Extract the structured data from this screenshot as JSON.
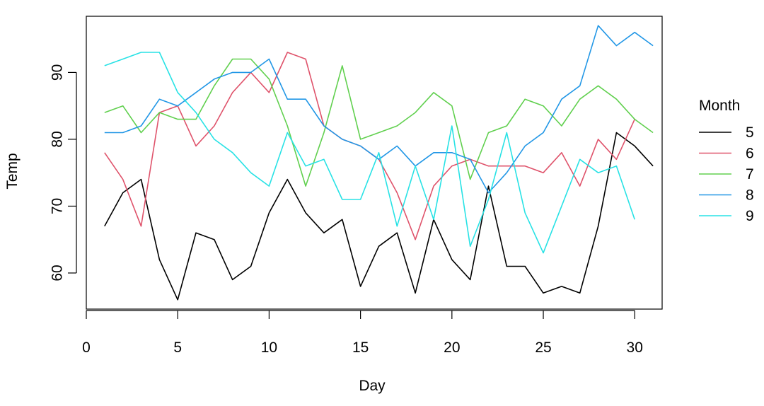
{
  "chart_data": {
    "type": "line",
    "xlabel": "Day",
    "ylabel": "Temp",
    "xlim": [
      0,
      31.5
    ],
    "ylim": [
      54.6,
      98.4
    ],
    "xticks": [
      0,
      5,
      10,
      15,
      20,
      25,
      30
    ],
    "yticks": [
      60,
      70,
      80,
      90
    ],
    "grid": false,
    "legend": {
      "title": "Month",
      "position": "right"
    },
    "series": [
      {
        "name": "5",
        "color": "#000000",
        "x": [
          1,
          2,
          3,
          4,
          5,
          6,
          7,
          8,
          9,
          10,
          11,
          12,
          13,
          14,
          15,
          16,
          17,
          18,
          19,
          20,
          21,
          22,
          23,
          24,
          25,
          26,
          27,
          28,
          29,
          30,
          31
        ],
        "values": [
          67,
          72,
          74,
          62,
          56,
          66,
          65,
          59,
          61,
          69,
          74,
          69,
          66,
          68,
          58,
          64,
          66,
          57,
          68,
          62,
          59,
          73,
          61,
          61,
          57,
          58,
          57,
          67,
          81,
          79,
          76
        ]
      },
      {
        "name": "6",
        "color": "#DF536B",
        "x": [
          1,
          2,
          3,
          4,
          5,
          6,
          7,
          8,
          9,
          10,
          11,
          12,
          13,
          14,
          15,
          16,
          17,
          18,
          19,
          20,
          21,
          22,
          23,
          24,
          25,
          26,
          27,
          28,
          29,
          30
        ],
        "values": [
          78,
          74,
          67,
          84,
          85,
          79,
          82,
          87,
          90,
          87,
          93,
          92,
          82,
          80,
          79,
          77,
          72,
          65,
          73,
          76,
          77,
          76,
          76,
          76,
          75,
          78,
          73,
          80,
          77,
          83
        ]
      },
      {
        "name": "7",
        "color": "#61D04F",
        "x": [
          1,
          2,
          3,
          4,
          5,
          6,
          7,
          8,
          9,
          10,
          11,
          12,
          13,
          14,
          15,
          16,
          17,
          18,
          19,
          20,
          21,
          22,
          23,
          24,
          25,
          26,
          27,
          28,
          29,
          30,
          31
        ],
        "values": [
          84,
          85,
          81,
          84,
          83,
          83,
          88,
          92,
          92,
          89,
          82,
          73,
          81,
          91,
          80,
          81,
          82,
          84,
          87,
          85,
          74,
          81,
          82,
          86,
          85,
          82,
          86,
          88,
          86,
          83,
          81
        ]
      },
      {
        "name": "8",
        "color": "#2297E6",
        "x": [
          1,
          2,
          3,
          4,
          5,
          6,
          7,
          8,
          9,
          10,
          11,
          12,
          13,
          14,
          15,
          16,
          17,
          18,
          19,
          20,
          21,
          22,
          23,
          24,
          25,
          26,
          27,
          28,
          29,
          30,
          31
        ],
        "values": [
          81,
          81,
          82,
          86,
          85,
          87,
          89,
          90,
          90,
          92,
          86,
          86,
          82,
          80,
          79,
          77,
          79,
          76,
          78,
          78,
          77,
          72,
          75,
          79,
          81,
          86,
          88,
          97,
          94,
          96,
          94
        ]
      },
      {
        "name": "9",
        "color": "#28E2E5",
        "x": [
          1,
          2,
          3,
          4,
          5,
          6,
          7,
          8,
          9,
          10,
          11,
          12,
          13,
          14,
          15,
          16,
          17,
          18,
          19,
          20,
          21,
          22,
          23,
          24,
          25,
          26,
          27,
          28,
          29,
          30
        ],
        "values": [
          91,
          92,
          93,
          93,
          87,
          84,
          80,
          78,
          75,
          73,
          81,
          76,
          77,
          71,
          71,
          78,
          67,
          76,
          68,
          82,
          64,
          71,
          81,
          69,
          63,
          70,
          77,
          75,
          76,
          68
        ]
      }
    ]
  }
}
